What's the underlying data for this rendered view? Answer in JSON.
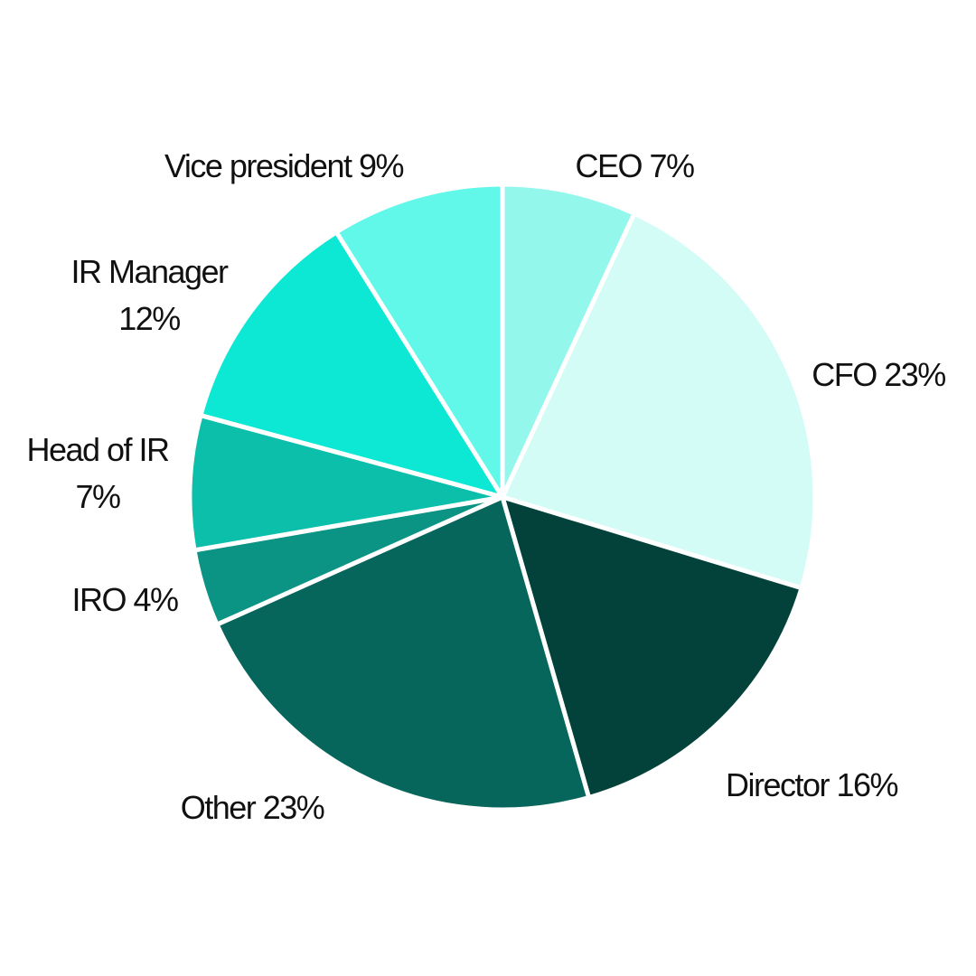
{
  "chart_data": {
    "type": "pie",
    "title": "",
    "start_angle_deg": 0,
    "direction": "clockwise",
    "slices": [
      {
        "name": "CEO",
        "value": 7,
        "display_value": "7%",
        "color": "#94f7ec",
        "label_lines": [
          "CEO 7%"
        ]
      },
      {
        "name": "CFO",
        "value": 23,
        "display_value": "23%",
        "color": "#d3fcf7",
        "label_lines": [
          "CFO 23%"
        ]
      },
      {
        "name": "Director",
        "value": 16,
        "display_value": "16%",
        "color": "#03423b",
        "label_lines": [
          "Director 16%"
        ]
      },
      {
        "name": "Other",
        "value": 23,
        "display_value": "23%",
        "color": "#07665b",
        "label_lines": [
          "Other 23%"
        ]
      },
      {
        "name": "IRO",
        "value": 4,
        "display_value": "4%",
        "color": "#0b9383",
        "label_lines": [
          "IRO 4%"
        ]
      },
      {
        "name": "Head of IR",
        "value": 7,
        "display_value": "7%",
        "color": "#0bbfab",
        "label_lines": [
          "Head of IR",
          "7%"
        ]
      },
      {
        "name": "IR Manager",
        "value": 12,
        "display_value": "12%",
        "color": "#0de8d4",
        "label_lines": [
          "IR Manager",
          "12%"
        ]
      },
      {
        "name": "Vice president",
        "value": 9,
        "display_value": "9%",
        "color": "#61f7e9",
        "label_lines": [
          "Vice president 9%"
        ]
      }
    ]
  }
}
